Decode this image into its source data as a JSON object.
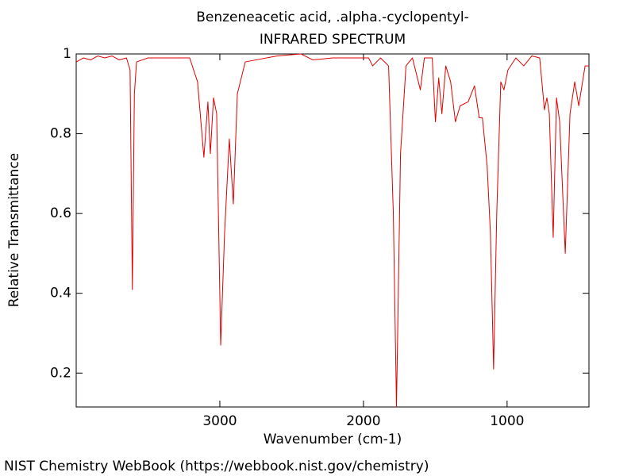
{
  "chart_data": {
    "type": "line",
    "title": "Benzeneacetic acid, .alpha.-cyclopentyl-",
    "subtitle": "INFRARED SPECTRUM",
    "xlabel": "Wavenumber (cm-1)",
    "ylabel": "Relative Transmittance",
    "footer": "NIST Chemistry WebBook (https://webbook.nist.gov/chemistry)",
    "xlim": [
      4000,
      430
    ],
    "ylim": [
      0.115,
      1
    ],
    "xticks": [
      3000,
      2000,
      1000
    ],
    "yticks": [
      0.2,
      0.4,
      0.6,
      0.8,
      1
    ],
    "x": [
      4000,
      3950,
      3900,
      3850,
      3800,
      3750,
      3700,
      3650,
      3625,
      3609,
      3595,
      3580,
      3500,
      3400,
      3300,
      3210,
      3155,
      3111,
      3083,
      3066,
      3044,
      3022,
      2994,
      2967,
      2934,
      2906,
      2878,
      2823,
      2601,
      2435,
      2352,
      2213,
      1964,
      1936,
      1881,
      1825,
      1792,
      1770,
      1742,
      1704,
      1659,
      1604,
      1576,
      1521,
      1499,
      1476,
      1454,
      1427,
      1393,
      1360,
      1327,
      1271,
      1227,
      1194,
      1172,
      1139,
      1116,
      1094,
      1072,
      1044,
      1022,
      994,
      939,
      884,
      828,
      773,
      740,
      723,
      706,
      679,
      656,
      634,
      595,
      562,
      529,
      501,
      457,
      430
    ],
    "series": [
      {
        "name": "Spectrum",
        "color": "#e00000",
        "values": [
          0.98,
          0.99,
          0.985,
          0.995,
          0.99,
          0.995,
          0.985,
          0.99,
          0.96,
          0.409,
          0.9,
          0.98,
          0.99,
          0.99,
          0.99,
          0.99,
          0.93,
          0.741,
          0.88,
          0.75,
          0.89,
          0.85,
          0.27,
          0.55,
          0.787,
          0.624,
          0.9,
          0.98,
          0.995,
          1.0,
          0.985,
          0.99,
          0.99,
          0.97,
          0.99,
          0.97,
          0.6,
          0.115,
          0.75,
          0.97,
          0.99,
          0.91,
          0.99,
          0.99,
          0.83,
          0.94,
          0.85,
          0.97,
          0.93,
          0.83,
          0.87,
          0.88,
          0.92,
          0.84,
          0.84,
          0.72,
          0.55,
          0.21,
          0.6,
          0.93,
          0.91,
          0.96,
          0.99,
          0.97,
          0.995,
          0.99,
          0.86,
          0.89,
          0.85,
          0.54,
          0.89,
          0.83,
          0.5,
          0.85,
          0.93,
          0.87,
          0.97,
          0.97
        ]
      }
    ]
  }
}
